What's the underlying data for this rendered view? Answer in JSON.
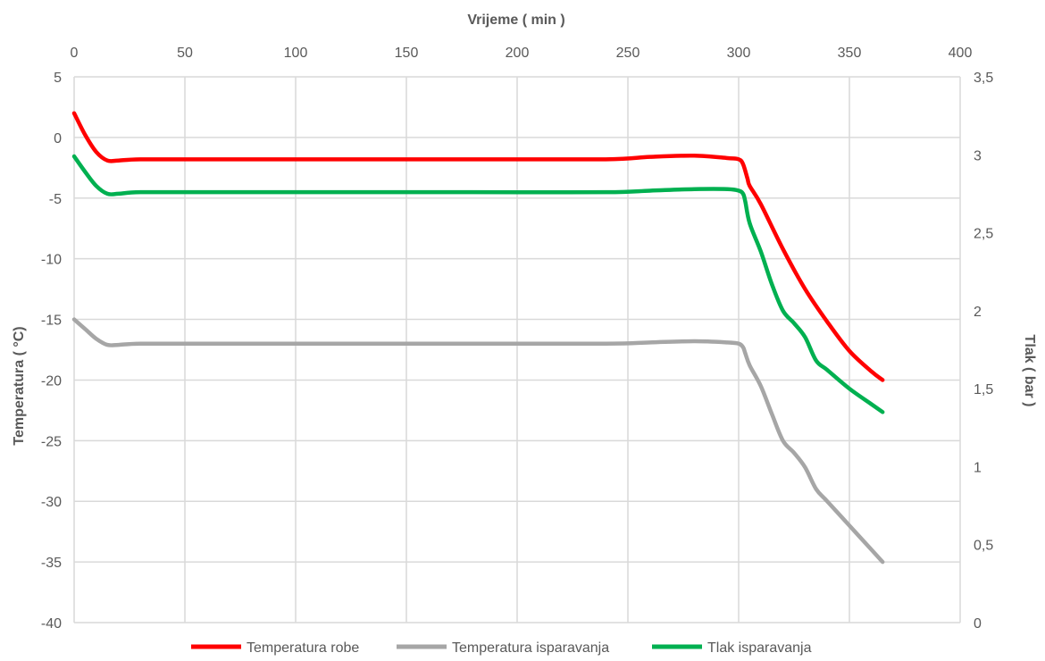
{
  "chart_data": {
    "type": "line",
    "xlabel": "Vrijeme ( min )",
    "ylabel": "Temperatura ( °C)",
    "y2label": "Tlak ( bar )",
    "xlim": [
      0,
      400
    ],
    "ylim": [
      -40,
      5
    ],
    "y2lim": [
      0,
      3.5
    ],
    "x_ticks": [
      "0",
      "50",
      "100",
      "150",
      "200",
      "250",
      "300",
      "350",
      "400"
    ],
    "y_ticks": [
      "-40",
      "-35",
      "-30",
      "-25",
      "-20",
      "-15",
      "-10",
      "-5",
      "0",
      "5"
    ],
    "y2_ticks": [
      "0",
      "0,5",
      "1",
      "1,5",
      "2",
      "2,5",
      "3",
      "3,5"
    ],
    "grid": true,
    "x_axis_position": "top",
    "legend_position": "bottom",
    "series": [
      {
        "name": "Temperatura robe",
        "axis": "left",
        "color": "#ff0000",
        "x": [
          0,
          5,
          10,
          15,
          20,
          30,
          60,
          120,
          180,
          240,
          260,
          280,
          295,
          300,
          302,
          304,
          305,
          310,
          320,
          330,
          340,
          350,
          360,
          365
        ],
        "y": [
          2,
          0.2,
          -1.2,
          -1.9,
          -1.9,
          -1.8,
          -1.8,
          -1.8,
          -1.8,
          -1.8,
          -1.6,
          -1.5,
          -1.7,
          -1.8,
          -2.2,
          -3.4,
          -4.0,
          -5.5,
          -9.2,
          -12.5,
          -15.2,
          -17.6,
          -19.3,
          -20
        ]
      },
      {
        "name": "Temperatura isparavanja",
        "axis": "left",
        "color": "#a6a6a6",
        "x": [
          0,
          5,
          10,
          15,
          20,
          30,
          60,
          120,
          180,
          240,
          260,
          280,
          295,
          300,
          302,
          303,
          305,
          310,
          315,
          320,
          325,
          330,
          335,
          340,
          350,
          360,
          365
        ],
        "y": [
          -15,
          -15.8,
          -16.6,
          -17.1,
          -17.1,
          -17.0,
          -17.0,
          -17.0,
          -17.0,
          -17.0,
          -16.9,
          -16.8,
          -16.9,
          -17.0,
          -17.3,
          -17.8,
          -18.8,
          -20.5,
          -22.8,
          -25.0,
          -26.0,
          -27.2,
          -29.0,
          -30.0,
          -32.0,
          -34.0,
          -35.0
        ]
      },
      {
        "name": "Tlak isparavanja",
        "axis": "right",
        "color": "#00b050",
        "x": [
          0,
          5,
          10,
          15,
          20,
          30,
          60,
          120,
          180,
          240,
          260,
          280,
          295,
          300,
          302,
          303,
          305,
          310,
          315,
          320,
          325,
          330,
          335,
          340,
          350,
          360,
          365
        ],
        "y": [
          2.99,
          2.89,
          2.8,
          2.75,
          2.75,
          2.76,
          2.76,
          2.76,
          2.76,
          2.76,
          2.77,
          2.78,
          2.78,
          2.77,
          2.75,
          2.7,
          2.56,
          2.38,
          2.17,
          2.0,
          1.92,
          1.83,
          1.68,
          1.62,
          1.5,
          1.4,
          1.35
        ]
      }
    ]
  }
}
